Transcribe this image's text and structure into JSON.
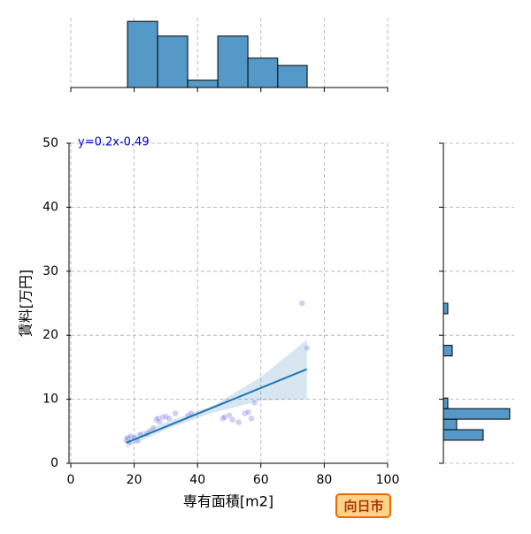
{
  "chart_data": [
    {
      "type": "scatter",
      "x_label": "専有面積[m2]",
      "y_label": "賃料[万円]",
      "annotation": "y=0.2x-0.49",
      "annotation_color": "#0000cc",
      "badge": "向日市",
      "color": "#7777dd",
      "x": [
        17.5,
        17.8,
        18,
        18.5,
        19,
        20,
        21,
        22,
        24,
        25,
        26,
        27,
        27.5,
        28,
        29,
        30,
        31,
        33,
        37,
        38,
        48,
        48.5,
        50,
        51,
        53,
        55,
        56,
        57,
        58,
        73,
        74.5
      ],
      "y": [
        3.6,
        3.8,
        4,
        3.3,
        4.2,
        4,
        3.5,
        4.5,
        4.6,
        5,
        5.5,
        6.8,
        7,
        6.5,
        7.2,
        7.3,
        7,
        7.8,
        7.5,
        7.8,
        7,
        7.2,
        7.5,
        6.8,
        6.4,
        7.8,
        8,
        7,
        9.5,
        25,
        18
      ],
      "fit_line": {
        "color": "#1f77b4",
        "x": [
          17.5,
          74.5
        ],
        "y": [
          3.2,
          14.7
        ]
      },
      "ci": {
        "color": "#1f77b4",
        "x": [
          17.5,
          30,
          45,
          60,
          74.5
        ],
        "lower": [
          2.4,
          5.3,
          7.9,
          9.8,
          10.0
        ],
        "upper": [
          4.0,
          6.4,
          9.0,
          13.5,
          19.3
        ]
      },
      "xlim": [
        0,
        100
      ],
      "ylim": [
        0,
        50
      ],
      "xticks": [
        0,
        20,
        40,
        60,
        80,
        100
      ],
      "yticks": [
        0,
        10,
        20,
        30,
        40,
        50
      ],
      "grid": true
    },
    {
      "type": "histogram",
      "orientation": "vertical",
      "color": "#5499c7",
      "bins": [
        17.9,
        27.4,
        36.9,
        46.4,
        55.9,
        65.3,
        74.6
      ],
      "values": [
        9,
        7,
        1,
        7,
        4,
        3
      ],
      "ylim": [
        0,
        9.5
      ]
    },
    {
      "type": "histogram",
      "orientation": "horizontal",
      "color": "#5499c7",
      "bins": [
        3.6,
        5.25,
        6.89,
        8.54,
        10.19,
        11.83,
        13.48,
        15.12,
        16.77,
        18.42,
        20.06,
        21.71,
        23.35,
        25.0
      ],
      "values": [
        9,
        3,
        15,
        1,
        0,
        0,
        0,
        0,
        2,
        0,
        0,
        0,
        1
      ],
      "xlim": [
        0,
        16
      ]
    }
  ]
}
